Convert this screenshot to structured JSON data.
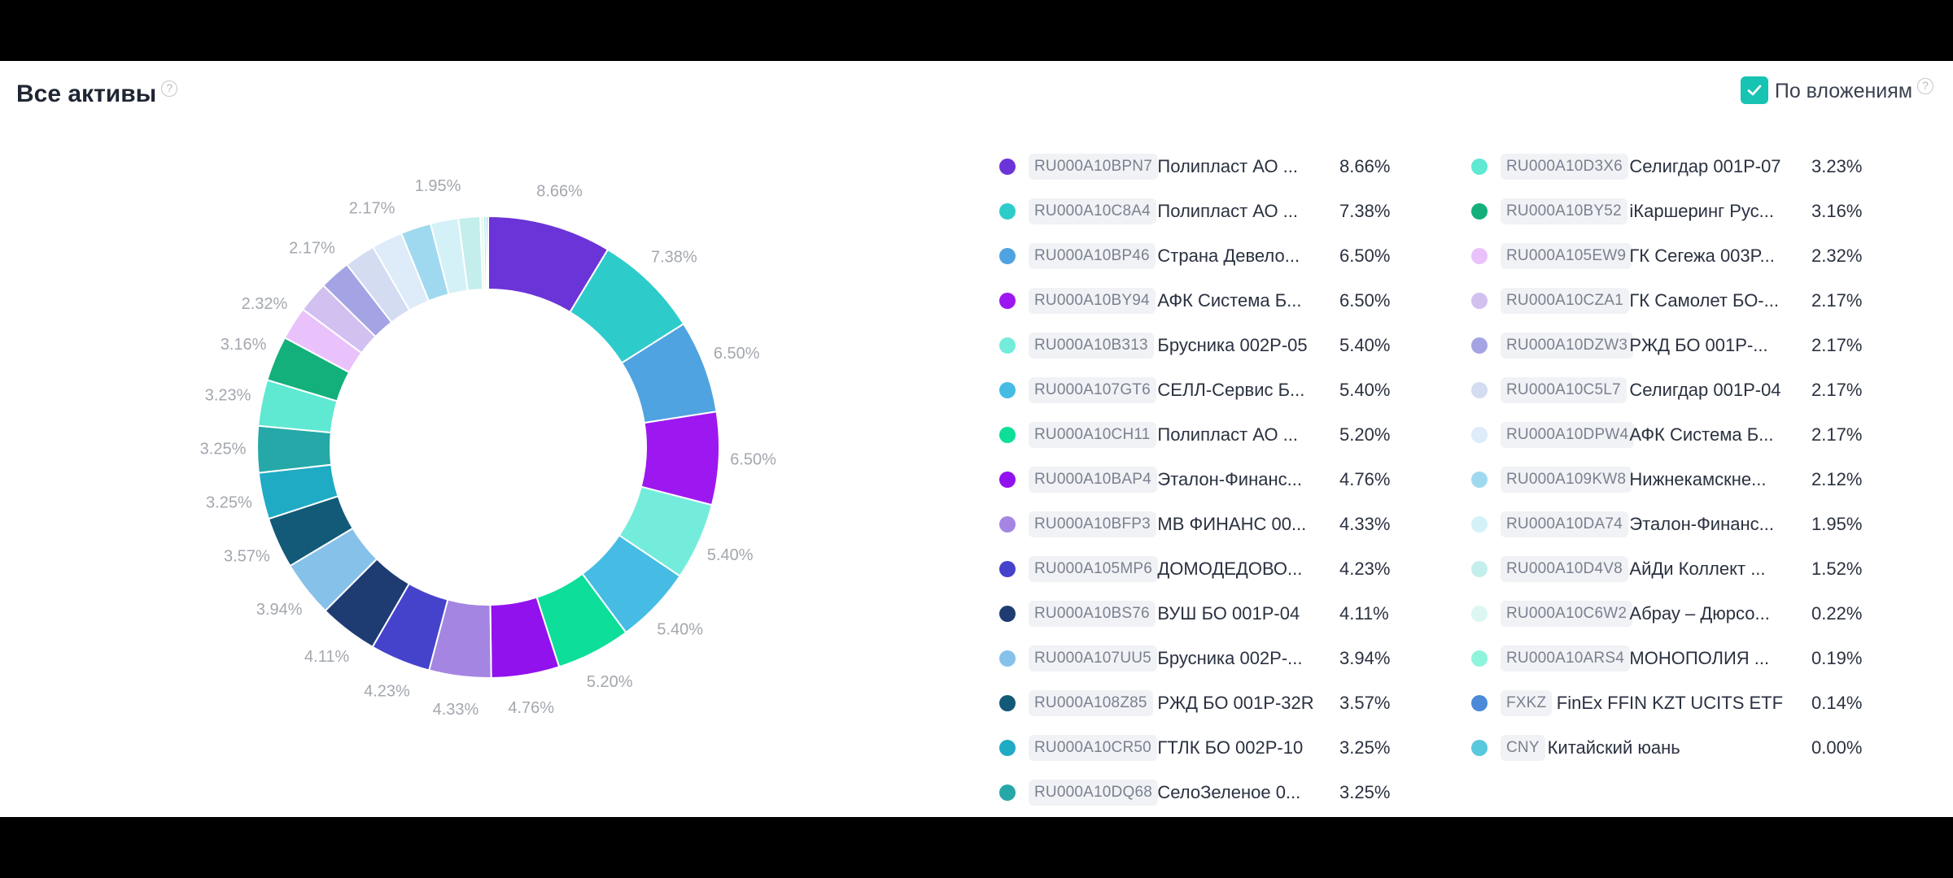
{
  "header": {
    "title": "Все активы",
    "by_investment_label": "По вложениям",
    "by_investment_checked": true
  },
  "colors": {
    "accent": "#17c3b2",
    "background": "#ffffff",
    "frame": "#000000"
  },
  "chart_data": {
    "type": "pie",
    "title": "Все активы",
    "donut": true,
    "legend_position": "right",
    "slices": [
      {
        "code": "RU000A10BPN7",
        "name": "Полипласт АО ...",
        "value": 8.66,
        "label": "8.66%",
        "color": "#6b34d8"
      },
      {
        "code": "RU000A10C8A4",
        "name": "Полипласт АО ...",
        "value": 7.38,
        "label": "7.38%",
        "color": "#2dcccb"
      },
      {
        "code": "RU000A10BP46",
        "name": "Страна Девело...",
        "value": 6.5,
        "label": "6.50%",
        "color": "#4fa3e0"
      },
      {
        "code": "RU000A10BY94",
        "name": "АФК Система Б...",
        "value": 6.5,
        "label": "6.50%",
        "color": "#9d18f0"
      },
      {
        "code": "RU000A10B313",
        "name": "Брусника 002P-05",
        "value": 5.4,
        "label": "5.40%",
        "color": "#74ecdc"
      },
      {
        "code": "RU000A107GT6",
        "name": "СЕЛЛ-Сервис Б...",
        "value": 5.4,
        "label": "5.40%",
        "color": "#46bce4"
      },
      {
        "code": "RU000A10CH11",
        "name": "Полипласт АО ...",
        "value": 5.2,
        "label": "5.20%",
        "color": "#0dde9a"
      },
      {
        "code": "RU000A10BAP4",
        "name": "Эталон-Финанс...",
        "value": 4.76,
        "label": "4.76%",
        "color": "#9212ee"
      },
      {
        "code": "RU000A10BFP3",
        "name": "МВ ФИНАНС 00...",
        "value": 4.33,
        "label": "4.33%",
        "color": "#a585e2"
      },
      {
        "code": "RU000A105MP6",
        "name": "ДОМОДЕДОВО...",
        "value": 4.23,
        "label": "4.23%",
        "color": "#4543cc"
      },
      {
        "code": "RU000A10BS76",
        "name": "ВУШ БО 001P-04",
        "value": 4.11,
        "label": "4.11%",
        "color": "#1e3c72"
      },
      {
        "code": "RU000A107UU5",
        "name": "Брусника 002P-...",
        "value": 3.94,
        "label": "3.94%",
        "color": "#86c1ea"
      },
      {
        "code": "RU000A108Z85",
        "name": "РЖД БО 001P-32R",
        "value": 3.57,
        "label": "3.57%",
        "color": "#125a78"
      },
      {
        "code": "RU000A10CR50",
        "name": "ГТЛК БО 002P-10",
        "value": 3.25,
        "label": "3.25%",
        "color": "#1fabc4"
      },
      {
        "code": "RU000A10DQ68",
        "name": "СелоЗеленое 0...",
        "value": 3.25,
        "label": "3.25%",
        "color": "#26a8a8"
      },
      {
        "code": "RU000A10D3X6",
        "name": "Селигдар 001P-07",
        "value": 3.23,
        "label": "3.23%",
        "color": "#5fe8d2"
      },
      {
        "code": "RU000A10BY52",
        "name": "iКаршеринг Рус...",
        "value": 3.16,
        "label": "3.16%",
        "color": "#13b07c"
      },
      {
        "code": "RU000A105EW9",
        "name": "ГК Сегежа 003P...",
        "value": 2.32,
        "label": "2.32%",
        "color": "#eac2fb"
      },
      {
        "code": "RU000A10CZA1",
        "name": "ГК Самолет БО-...",
        "value": 2.17,
        "label": "2.17%",
        "color": "#d2c0f0"
      },
      {
        "code": "RU000A10DZW3",
        "name": "РЖД БО 001P-...",
        "value": 2.17,
        "label": "2.17%",
        "color": "#a4a4e4"
      },
      {
        "code": "RU000A10C5L7",
        "name": "Селигдар 001P-04",
        "value": 2.17,
        "label": "2.17%",
        "color": "#d4dcf2"
      },
      {
        "code": "RU000A10DPW4",
        "name": "АФК Система Б...",
        "value": 2.17,
        "label": "2.17%",
        "color": "#deebf8"
      },
      {
        "code": "RU000A109KW8",
        "name": "Нижнекамскне...",
        "value": 2.12,
        "label": "2.12%",
        "color": "#9fd9ef"
      },
      {
        "code": "RU000A10DA74",
        "name": "Эталон-Финанс...",
        "value": 1.95,
        "label": "1.95%",
        "color": "#d4f1f7"
      },
      {
        "code": "RU000A10D4V8",
        "name": "АйДи Коллект ...",
        "value": 1.52,
        "label": "1.52%",
        "color": "#c3eeec"
      },
      {
        "code": "RU000A10C6W2",
        "name": "Абрау – Дюрсо...",
        "value": 0.22,
        "label": "0.22%",
        "color": "#dcf7f3"
      },
      {
        "code": "RU000A10ARS4",
        "name": "МОНОПОЛИЯ ...",
        "value": 0.19,
        "label": "0.19%",
        "color": "#8ff4dc"
      },
      {
        "code": "FXKZ",
        "name": "FinEx FFIN KZT UCITS ETF",
        "value": 0.14,
        "label": "0.14%",
        "color": "#4a8ad8"
      },
      {
        "code": "CNY",
        "name": "Китайский юань",
        "value": 0.0,
        "label": "0.00%",
        "color": "#58c8de"
      }
    ],
    "outer_labels": [
      {
        "slice": 0,
        "label": "8.66%"
      },
      {
        "slice": 1,
        "label": "7.38%"
      },
      {
        "slice": 2,
        "label": "6.50%"
      },
      {
        "slice": 3,
        "label": "6.50%"
      },
      {
        "slice": 4,
        "label": "5.40%"
      },
      {
        "slice": 5,
        "label": "5.40%"
      },
      {
        "slice": 6,
        "label": "5.20%"
      },
      {
        "slice": 7,
        "label": "4.76%"
      },
      {
        "slice": 8,
        "label": "4.33%"
      },
      {
        "slice": 9,
        "label": "4.23%"
      },
      {
        "slice": 10,
        "label": "4.11%"
      },
      {
        "slice": 11,
        "label": "3.94%"
      },
      {
        "slice": 12,
        "label": "3.57%"
      },
      {
        "slice": 13,
        "label": "3.25%"
      },
      {
        "slice": 14,
        "label": "3.25%"
      },
      {
        "slice": 15,
        "label": "3.23%"
      },
      {
        "slice": 16,
        "label": "3.16%"
      },
      {
        "slice": 17,
        "label": "2.32%"
      },
      {
        "slice": 19,
        "label": "2.17%"
      },
      {
        "slice": 21,
        "label": "2.17%"
      },
      {
        "slice": 23,
        "label": "1.95%"
      }
    ]
  }
}
